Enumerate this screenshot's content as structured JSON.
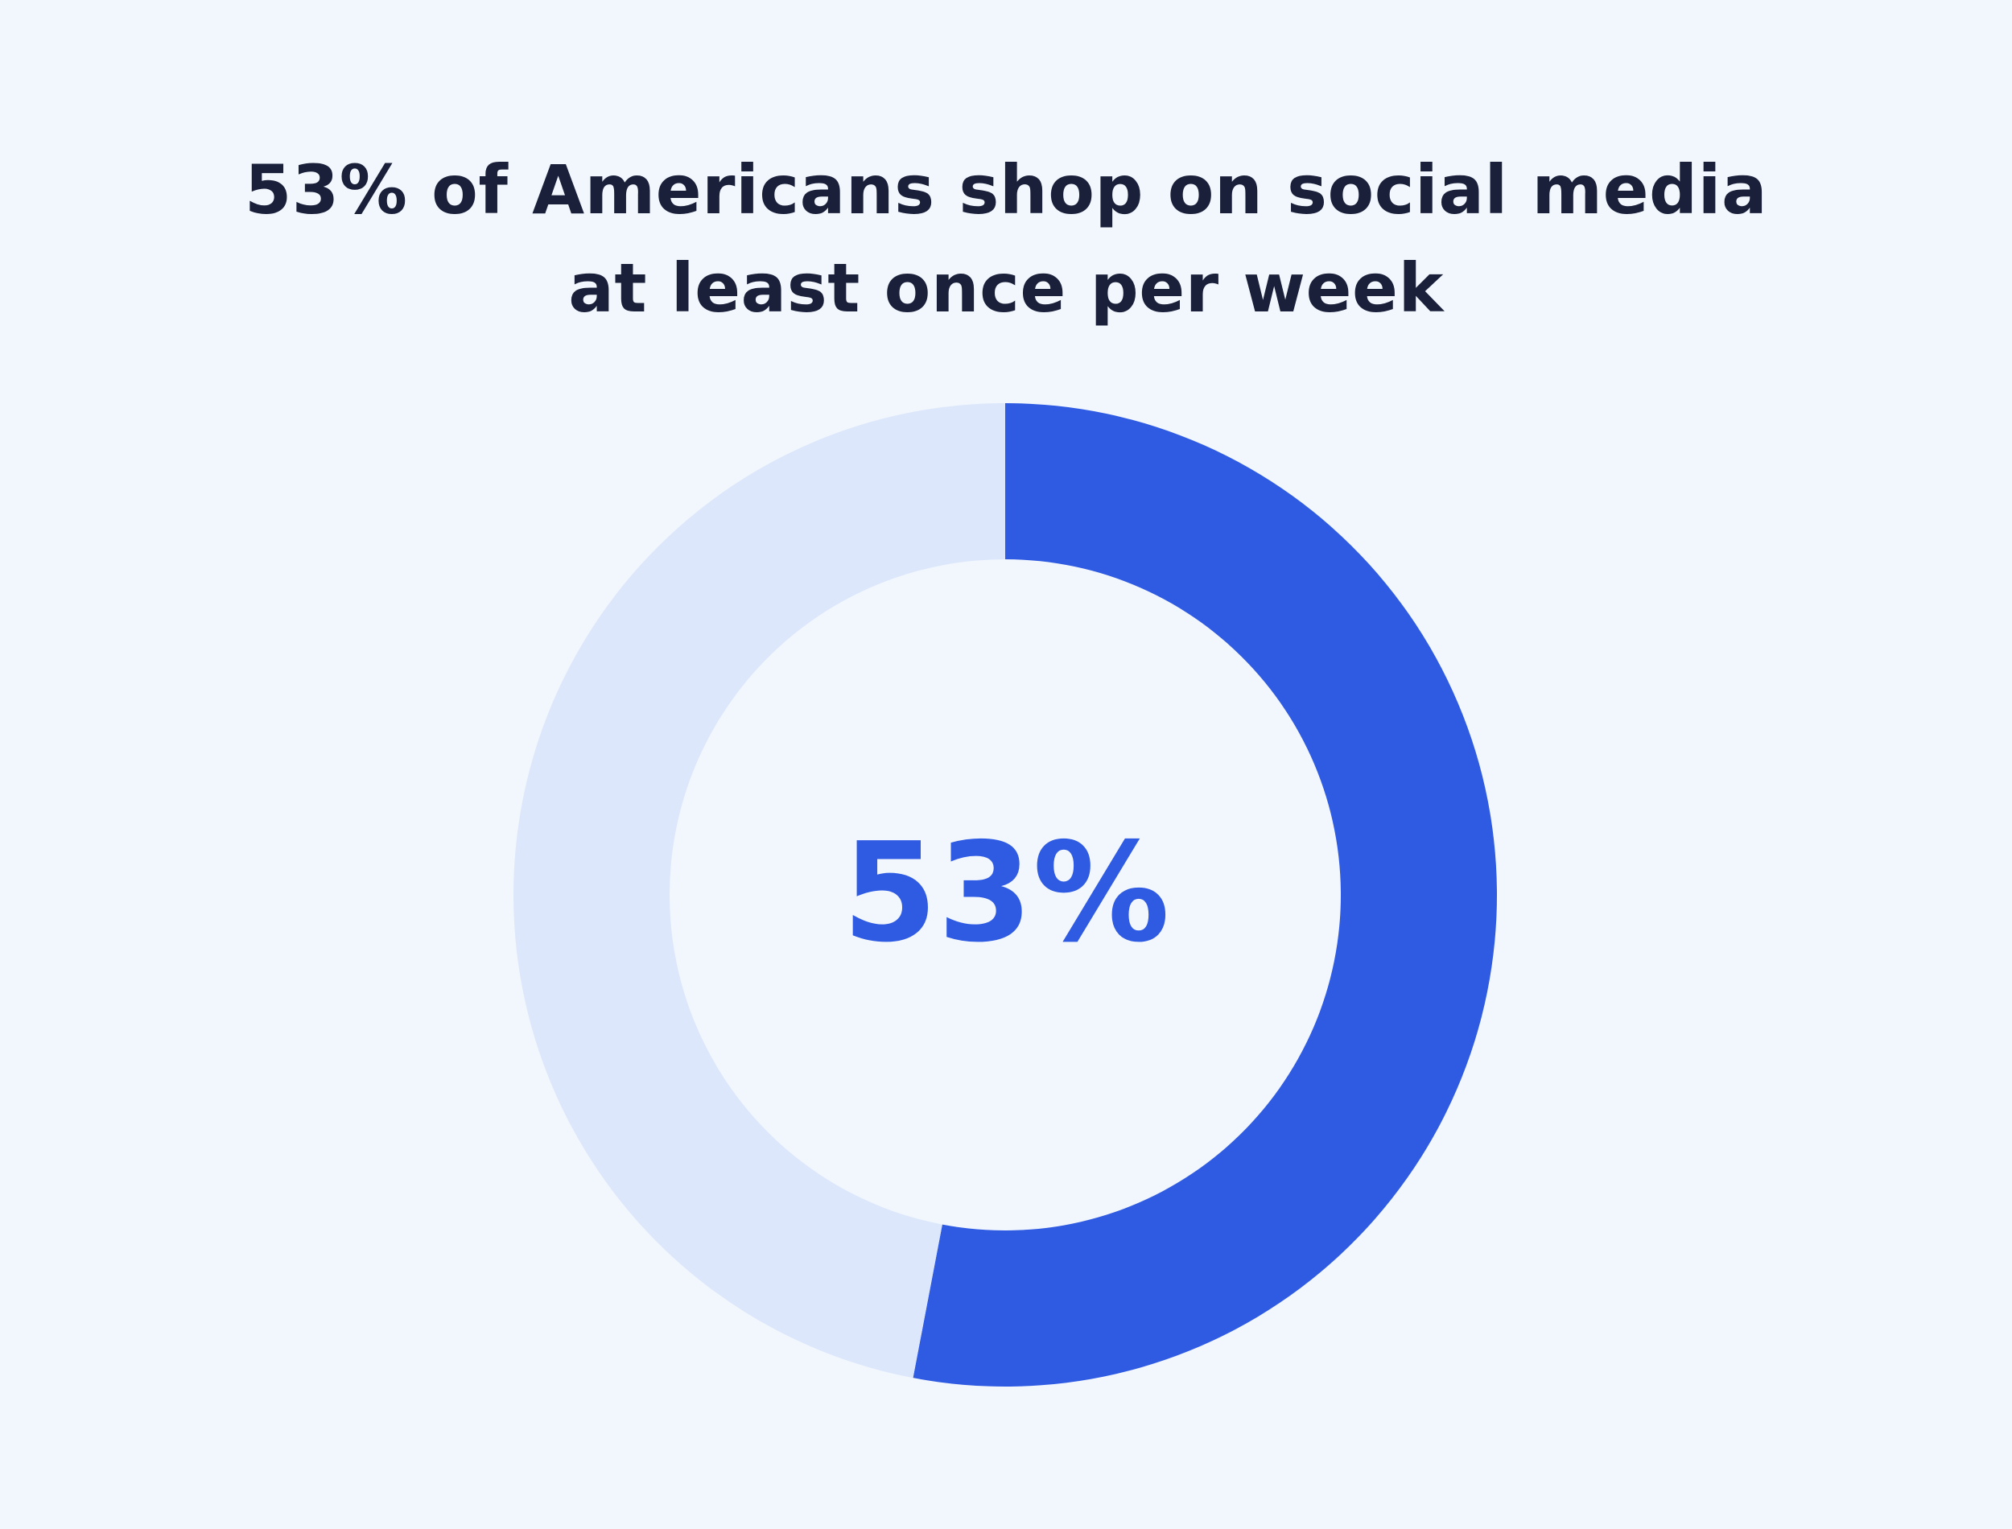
{
  "chart_data": {
    "type": "pie",
    "title_lines": [
      "53% of Americans shop on social media",
      "at least once per week"
    ],
    "center_label": "53%",
    "slices": [
      {
        "value": 53,
        "color": "#2f5be3"
      },
      {
        "value": 47,
        "color": "#dce7fb"
      }
    ]
  },
  "colors": {
    "background": "#f2f7fd",
    "title": "#1a1f3a",
    "accent": "#2f5be3",
    "track": "#dce7fb"
  }
}
